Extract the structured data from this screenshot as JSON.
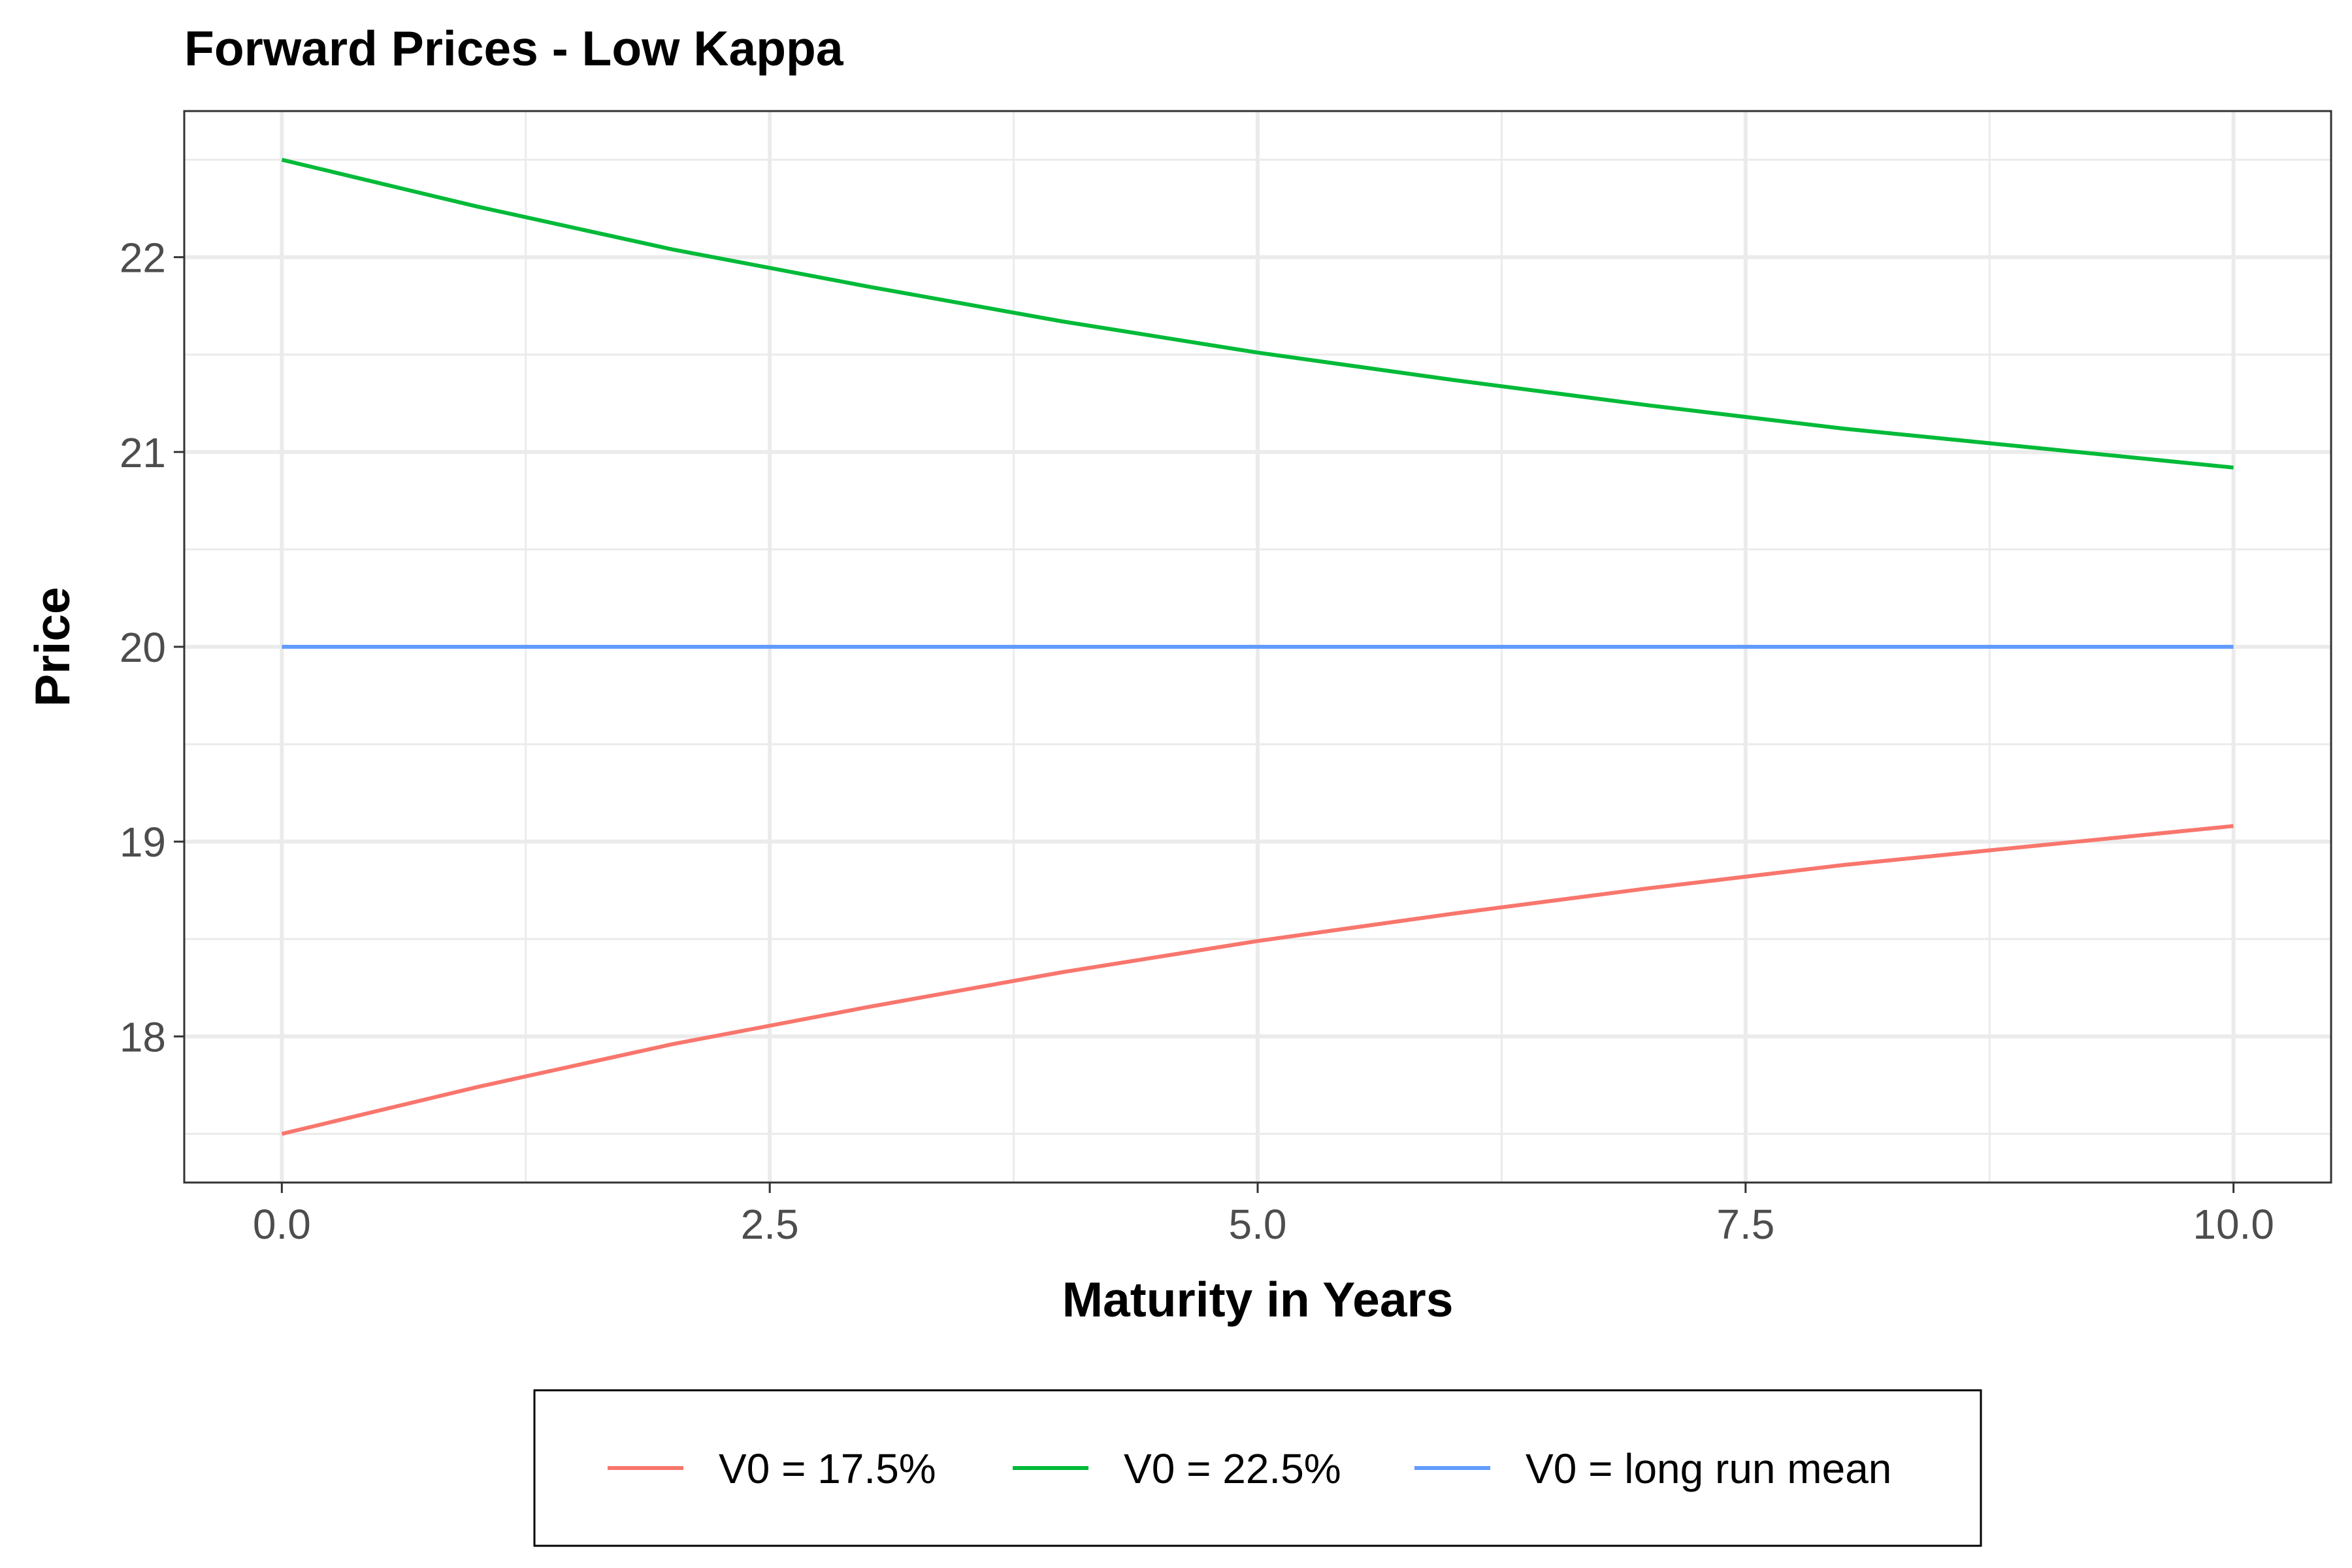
{
  "chart_data": {
    "type": "line",
    "title": "Forward Prices - Low Kappa",
    "xlabel": "Maturity in Years",
    "ylabel": "Price",
    "xlim": [
      -0.5,
      10.5
    ],
    "ylim": [
      17.25,
      22.75
    ],
    "x_ticks": [
      0,
      2.5,
      5,
      7.5,
      10
    ],
    "x_tick_labels": [
      "0.0",
      "2.5",
      "5.0",
      "7.5",
      "10.0"
    ],
    "y_ticks": [
      18,
      19,
      20,
      21,
      22
    ],
    "y_tick_labels": [
      "18",
      "19",
      "20",
      "21",
      "22"
    ],
    "grid": true,
    "legend_position": "bottom",
    "x": [
      0,
      1,
      2,
      3,
      4,
      5,
      6,
      7,
      8,
      9,
      10
    ],
    "series": [
      {
        "name": "V0 = 17.5%",
        "color": "#F8766D",
        "values": [
          17.5,
          17.74,
          17.96,
          18.15,
          18.33,
          18.49,
          18.63,
          18.76,
          18.88,
          18.98,
          19.08
        ]
      },
      {
        "name": "V0 = 22.5%",
        "color": "#00BA38",
        "values": [
          22.5,
          22.26,
          22.04,
          21.85,
          21.67,
          21.51,
          21.37,
          21.24,
          21.12,
          21.02,
          20.92
        ]
      },
      {
        "name": "V0 = long run mean",
        "color": "#619CFF",
        "values": [
          20,
          20,
          20,
          20,
          20,
          20,
          20,
          20,
          20,
          20,
          20
        ]
      }
    ]
  }
}
